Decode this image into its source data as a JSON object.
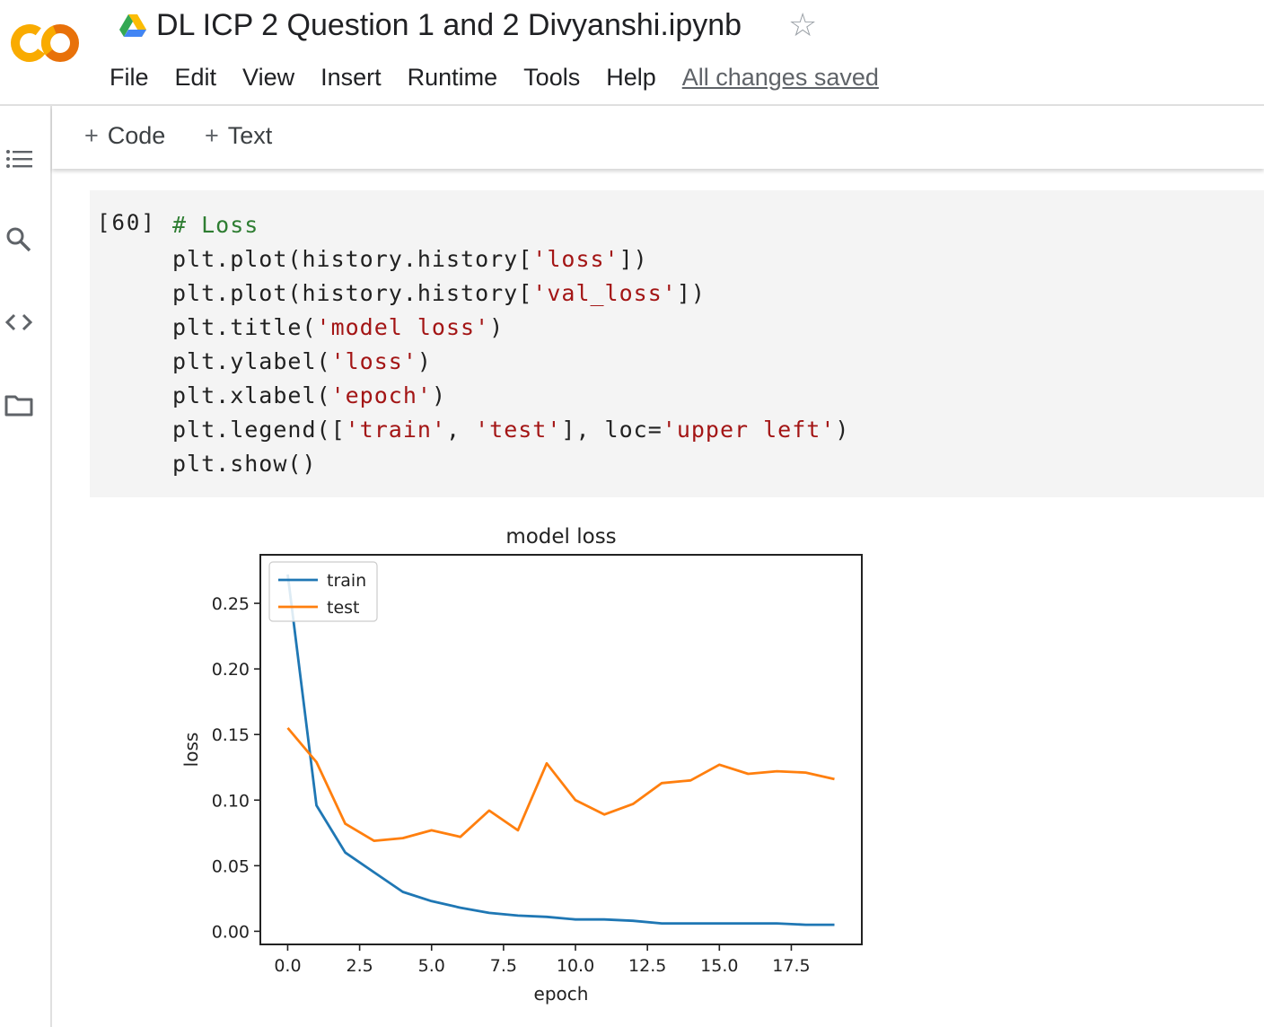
{
  "header": {
    "title": "DL ICP 2 Question 1 and 2 Divyanshi.ipynb",
    "logo_text": "CO",
    "star_glyph": "☆",
    "menu": [
      "File",
      "Edit",
      "View",
      "Insert",
      "Runtime",
      "Tools",
      "Help"
    ],
    "save_status": "All changes saved"
  },
  "sidebar": {
    "icons": [
      "table-of-contents-icon",
      "search-icon",
      "code-snippets-icon",
      "files-folder-icon"
    ]
  },
  "toolbar": {
    "plus_glyph": "+",
    "code_label": "Code",
    "text_label": "Text"
  },
  "cell": {
    "execution_count": "[60]",
    "code_lines": [
      [
        {
          "t": "# Loss",
          "k": "cm"
        }
      ],
      [
        {
          "t": "plt.plot(history.history[",
          "k": ""
        },
        {
          "t": "'loss'",
          "k": "st"
        },
        {
          "t": "])",
          "k": ""
        }
      ],
      [
        {
          "t": "plt.plot(history.history[",
          "k": ""
        },
        {
          "t": "'val_loss'",
          "k": "st"
        },
        {
          "t": "])",
          "k": ""
        }
      ],
      [
        {
          "t": "plt.title(",
          "k": ""
        },
        {
          "t": "'model loss'",
          "k": "st"
        },
        {
          "t": ")",
          "k": ""
        }
      ],
      [
        {
          "t": "plt.ylabel(",
          "k": ""
        },
        {
          "t": "'loss'",
          "k": "st"
        },
        {
          "t": ")",
          "k": ""
        }
      ],
      [
        {
          "t": "plt.xlabel(",
          "k": ""
        },
        {
          "t": "'epoch'",
          "k": "st"
        },
        {
          "t": ")",
          "k": ""
        }
      ],
      [
        {
          "t": "plt.legend([",
          "k": ""
        },
        {
          "t": "'train'",
          "k": "st"
        },
        {
          "t": ", ",
          "k": ""
        },
        {
          "t": "'test'",
          "k": "st"
        },
        {
          "t": "], loc=",
          "k": ""
        },
        {
          "t": "'upper left'",
          "k": "st"
        },
        {
          "t": ")",
          "k": ""
        }
      ],
      [
        {
          "t": "plt.show()",
          "k": ""
        }
      ]
    ]
  },
  "chart_data": {
    "type": "line",
    "title": "model loss",
    "xlabel": "epoch",
    "ylabel": "loss",
    "xlim": [
      -0.95,
      19.95
    ],
    "ylim": [
      -0.01,
      0.287
    ],
    "xticks": [
      0.0,
      2.5,
      5.0,
      7.5,
      10.0,
      12.5,
      15.0,
      17.5
    ],
    "xtick_labels": [
      "0.0",
      "2.5",
      "5.0",
      "7.5",
      "10.0",
      "12.5",
      "15.0",
      "17.5"
    ],
    "yticks": [
      0.0,
      0.05,
      0.1,
      0.15,
      0.2,
      0.25
    ],
    "ytick_labels": [
      "0.00",
      "0.05",
      "0.10",
      "0.15",
      "0.20",
      "0.25"
    ],
    "grid": false,
    "legend_position": "upper left",
    "x": [
      0,
      1,
      2,
      3,
      4,
      5,
      6,
      7,
      8,
      9,
      10,
      11,
      12,
      13,
      14,
      15,
      16,
      17,
      18,
      19
    ],
    "series": [
      {
        "name": "train",
        "color": "#1f77b4",
        "values": [
          0.272,
          0.096,
          0.06,
          0.045,
          0.03,
          0.023,
          0.018,
          0.014,
          0.012,
          0.011,
          0.009,
          0.009,
          0.008,
          0.006,
          0.006,
          0.006,
          0.006,
          0.006,
          0.005,
          0.005
        ]
      },
      {
        "name": "test",
        "color": "#ff7f0e",
        "values": [
          0.155,
          0.129,
          0.082,
          0.069,
          0.071,
          0.077,
          0.072,
          0.092,
          0.077,
          0.128,
          0.1,
          0.089,
          0.097,
          0.113,
          0.115,
          0.127,
          0.12,
          0.122,
          0.121,
          0.116
        ]
      }
    ]
  }
}
